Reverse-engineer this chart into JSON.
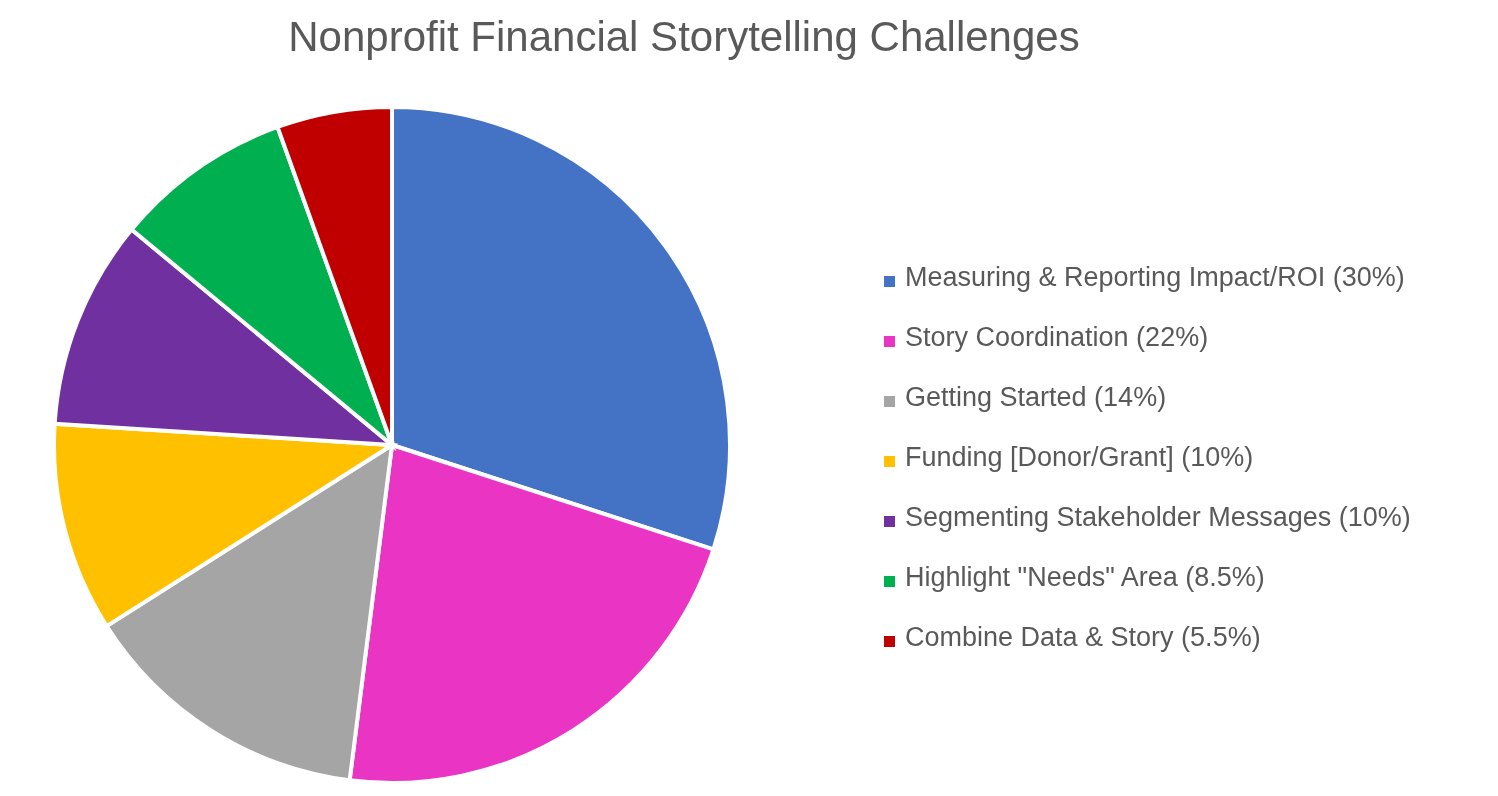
{
  "chart_data": {
    "type": "pie",
    "title": "Nonprofit Financial Storytelling Challenges",
    "categories": [
      "Measuring & Reporting Impact/ROI (30%)",
      "Story Coordination (22%)",
      "Getting Started (14%)",
      "Funding [Donor/Grant] (10%)",
      "Segmenting Stakeholder Messages (10%)",
      "Highlight \"Needs\" Area (8.5%)",
      "Combine Data & Story (5.5%)"
    ],
    "values": [
      30,
      22,
      14,
      10,
      10,
      8.5,
      5.5
    ],
    "colors": [
      "#4472c4",
      "#e934c4",
      "#a5a5a5",
      "#ffc000",
      "#7030a0",
      "#00b050",
      "#c00000"
    ],
    "legend": "right"
  }
}
